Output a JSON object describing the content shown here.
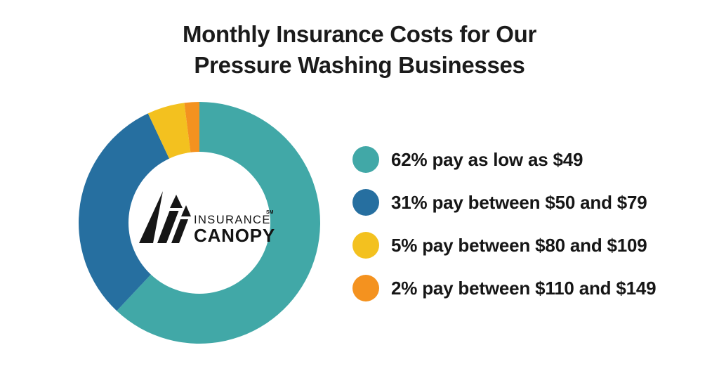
{
  "title": {
    "line1": "Monthly Insurance Costs for Our",
    "line2": "Pressure Washing Businesses"
  },
  "chart_data": {
    "type": "pie",
    "variant": "donut",
    "title": "Monthly Insurance Costs for Our Pressure Washing Businesses",
    "categories": [
      "pay as low as $49",
      "pay between $50 and $79",
      "pay between $80 and $109",
      "pay between $110 and $149"
    ],
    "values": [
      62,
      31,
      5,
      2
    ],
    "unit": "%",
    "colors": [
      "#41A8A7",
      "#266FA0",
      "#F3C11F",
      "#F4921F"
    ],
    "start_angle_deg": 0,
    "direction": "clockwise",
    "inner_radius_ratio": 0.59,
    "legend_position": "right",
    "center_label": "INSURANCE CANOPY"
  },
  "legend": {
    "items": [
      {
        "label": "62% pay as low as $49",
        "color": "#41A8A7"
      },
      {
        "label": "31% pay between $50 and $79",
        "color": "#266FA0"
      },
      {
        "label": "5% pay between $80 and $109",
        "color": "#F3C11F"
      },
      {
        "label": "2% pay between $110 and $149",
        "color": "#F4921F"
      }
    ]
  },
  "logo": {
    "insurance": "INSURANCE",
    "canopy": "CANOPY",
    "service_mark": "SM"
  }
}
